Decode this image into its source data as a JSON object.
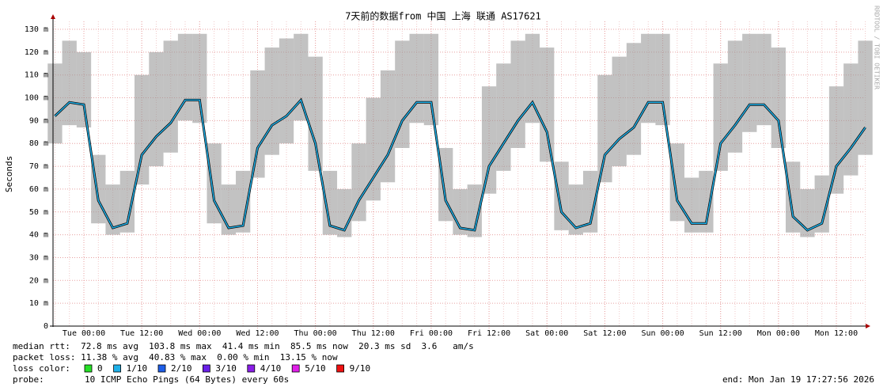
{
  "chart_data": {
    "type": "smokeping",
    "title": "7天前的数据from 中国 上海 联通 AS17621",
    "ylabel": "Seconds",
    "watermark": "RRDTOOL / TOBI OETIKER",
    "ylim": [
      0,
      0.13
    ],
    "yticks": [
      0,
      {
        "value": 0.01,
        "label": "10 m"
      },
      {
        "value": 0.02,
        "label": "20 m"
      },
      {
        "value": 0.03,
        "label": "30 m"
      },
      {
        "value": 0.04,
        "label": "40 m"
      },
      {
        "value": 0.05,
        "label": "50 m"
      },
      {
        "value": 0.06,
        "label": "60 m"
      },
      {
        "value": 0.07,
        "label": "70 m"
      },
      {
        "value": 0.08,
        "label": "80 m"
      },
      {
        "value": 0.09,
        "label": "90 m"
      },
      {
        "value": 0.1,
        "label": "100 m"
      },
      {
        "value": 0.11,
        "label": "110 m"
      },
      {
        "value": 0.12,
        "label": "120 m"
      },
      {
        "value": 0.13,
        "label": "130 m"
      }
    ],
    "grid": true,
    "categories": [
      null,
      null,
      "Tue 00:00",
      null,
      null,
      null,
      "Tue 12:00",
      null,
      null,
      null,
      "Wed 00:00",
      null,
      null,
      null,
      "Wed 12:00",
      null,
      null,
      null,
      "Thu 00:00",
      null,
      null,
      null,
      "Thu 12:00",
      null,
      null,
      null,
      "Fri 00:00",
      null,
      null,
      null,
      "Fri 12:00",
      null,
      null,
      null,
      "Sat 00:00",
      null,
      null,
      null,
      "Sat 12:00",
      null,
      null,
      null,
      "Sun 00:00",
      null,
      null,
      null,
      "Sun 12:00",
      null,
      null,
      null,
      "Mon 00:00",
      null,
      null,
      null,
      "Mon 12:00",
      null,
      null
    ],
    "series": [
      {
        "name": "median rtt",
        "color": "#1fb0e8",
        "values": [
          0.092,
          0.098,
          0.097,
          0.055,
          0.043,
          0.045,
          0.075,
          0.083,
          0.089,
          0.099,
          0.099,
          0.055,
          0.043,
          0.044,
          0.078,
          0.088,
          0.092,
          0.099,
          0.08,
          0.044,
          0.042,
          0.055,
          0.065,
          0.075,
          0.09,
          0.098,
          0.098,
          0.055,
          0.043,
          0.042,
          0.07,
          0.08,
          0.09,
          0.098,
          0.085,
          0.05,
          0.043,
          0.045,
          0.075,
          0.082,
          0.087,
          0.098,
          0.098,
          0.055,
          0.045,
          0.045,
          0.08,
          0.088,
          0.097,
          0.097,
          0.09,
          0.048,
          0.042,
          0.045,
          0.07,
          0.078,
          0.087
        ]
      }
    ],
    "smoke": {
      "color": "#9a9a9a",
      "low": [
        0.08,
        0.088,
        0.087,
        0.045,
        0.04,
        0.041,
        0.062,
        0.07,
        0.076,
        0.09,
        0.089,
        0.045,
        0.04,
        0.041,
        0.065,
        0.075,
        0.08,
        0.09,
        0.068,
        0.04,
        0.039,
        0.046,
        0.055,
        0.063,
        0.078,
        0.089,
        0.088,
        0.046,
        0.04,
        0.039,
        0.058,
        0.068,
        0.078,
        0.089,
        0.072,
        0.042,
        0.04,
        0.041,
        0.063,
        0.07,
        0.075,
        0.089,
        0.088,
        0.046,
        0.041,
        0.041,
        0.068,
        0.076,
        0.085,
        0.088,
        0.078,
        0.041,
        0.039,
        0.041,
        0.058,
        0.066,
        0.075
      ],
      "high": [
        0.115,
        0.125,
        0.12,
        0.075,
        0.062,
        0.068,
        0.11,
        0.12,
        0.125,
        0.128,
        0.128,
        0.08,
        0.062,
        0.068,
        0.112,
        0.122,
        0.126,
        0.128,
        0.118,
        0.068,
        0.06,
        0.08,
        0.1,
        0.112,
        0.125,
        0.128,
        0.128,
        0.078,
        0.06,
        0.062,
        0.105,
        0.115,
        0.125,
        0.128,
        0.122,
        0.072,
        0.062,
        0.068,
        0.11,
        0.118,
        0.124,
        0.128,
        0.128,
        0.08,
        0.065,
        0.068,
        0.115,
        0.125,
        0.128,
        0.128,
        0.122,
        0.072,
        0.06,
        0.066,
        0.105,
        0.115,
        0.125
      ]
    }
  },
  "stats": {
    "lines": [
      "median rtt:  72.8 ms avg  103.8 ms max  41.4 ms min  85.5 ms now  20.3 ms sd  3.6   am/s",
      "packet loss: 11.38 % avg  40.83 % max  0.00 % min  13.15 % now"
    ]
  },
  "loss_legend": {
    "label": "loss color:",
    "items": [
      {
        "label": "0",
        "color": "#26e026"
      },
      {
        "label": "1/10",
        "color": "#1fb0e8"
      },
      {
        "label": "2/10",
        "color": "#1e5ee8"
      },
      {
        "label": "3/10",
        "color": "#6a20e8"
      },
      {
        "label": "4/10",
        "color": "#8a1ee8"
      },
      {
        "label": "5/10",
        "color": "#e01ee8"
      },
      {
        "label": "9/10",
        "color": "#ee1111"
      }
    ]
  },
  "probe": {
    "label": "probe:",
    "text": "10 ICMP Echo Pings (64 Bytes) every 60s",
    "end": "end: Mon Jan 19 17:27:56 2026"
  }
}
